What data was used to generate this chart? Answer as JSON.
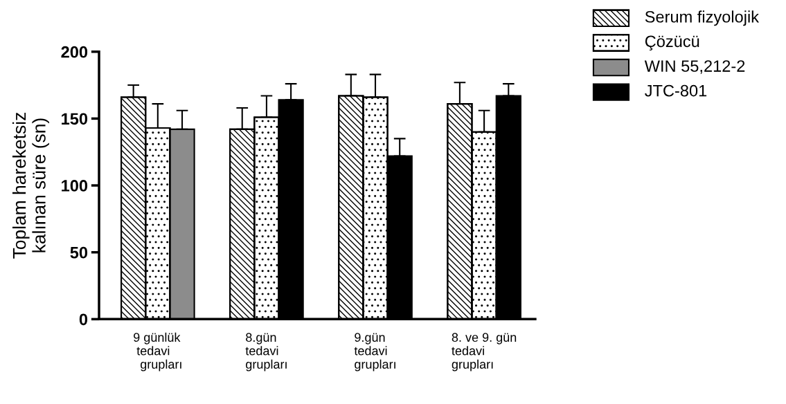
{
  "chart_data": {
    "type": "bar",
    "ylabel": "Toplam hareketsiz\nkalınan süre (sn)",
    "categories": [
      "9 günlük\n tedavi\n  grupları",
      "8.gün\ntedavi\ngrupları",
      "9.gün\ntedavi\ngrupları",
      "8. ve 9. gün\ntedavi\ngrupları"
    ],
    "series": [
      {
        "name": "Serum fizyolojik",
        "color": "#ffffff",
        "values": [
          166,
          142,
          167,
          161
        ],
        "errors": [
          [
            166,
            175
          ],
          [
            142,
            158
          ],
          [
            167,
            183
          ],
          [
            161,
            177
          ]
        ]
      },
      {
        "name": "Çözücü",
        "color": "#ffffff",
        "values": [
          143,
          151,
          166,
          140
        ],
        "errors": [
          [
            143,
            161
          ],
          [
            151,
            167
          ],
          [
            166,
            183
          ],
          [
            140,
            156
          ]
        ]
      },
      {
        "name": "WIN 55,212-2",
        "color": "#8c8c8c",
        "values": [
          142,
          null,
          null,
          null
        ],
        "errors": [
          [
            142,
            156
          ],
          null,
          null,
          null
        ]
      },
      {
        "name": "JTC-801",
        "color": "#000000",
        "values": [
          null,
          164,
          122,
          167
        ],
        "errors": [
          null,
          [
            164,
            176
          ],
          [
            122,
            135
          ],
          [
            167,
            176
          ]
        ]
      }
    ],
    "ylim": [
      0,
      200
    ],
    "yticks": [
      0,
      50,
      100,
      150,
      200
    ],
    "grid": false,
    "legend": "top right"
  }
}
